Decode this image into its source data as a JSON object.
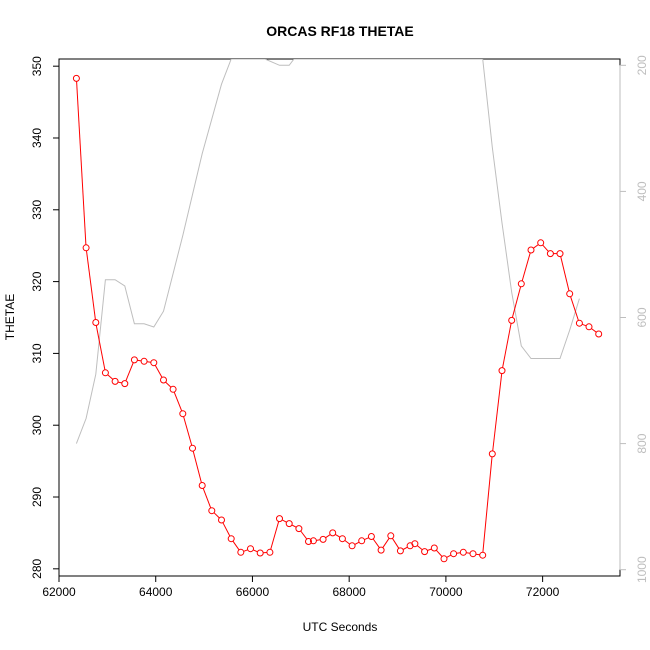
{
  "chart_data": {
    "type": "line",
    "title": "ORCAS RF18 THETAE",
    "xlabel": "UTC Seconds",
    "ylabel": "THETAE",
    "xlim": [
      62000,
      73600
    ],
    "ylim": [
      279,
      351
    ],
    "y2lim": [
      1010,
      190
    ],
    "y2_reversed": true,
    "x_ticks": [
      62000,
      64000,
      66000,
      68000,
      70000,
      72000
    ],
    "y_ticks": [
      280,
      290,
      300,
      310,
      320,
      330,
      340,
      350
    ],
    "y2_ticks": [
      200,
      400,
      600,
      800,
      1000
    ],
    "grid": false,
    "legend": "none",
    "colors": {
      "primary": "#ff0000",
      "secondary": "#bebebe"
    },
    "series": [
      {
        "axis": "left",
        "color": "#ff0000",
        "marker": "open-circle",
        "x": [
          62360,
          62560,
          62760,
          62960,
          63160,
          63360,
          63560,
          63760,
          63960,
          64160,
          64360,
          64560,
          64760,
          64960,
          65160,
          65360,
          65560,
          65760,
          65960,
          66160,
          66360,
          66560,
          66760,
          66960,
          67160,
          67260,
          67460,
          67660,
          67860,
          68060,
          68260,
          68460,
          68660,
          68860,
          69060,
          69260,
          69360,
          69560,
          69760,
          69960,
          70160,
          70360,
          70560,
          70760,
          70960,
          71160,
          71360,
          71560,
          71760,
          71960,
          72160,
          72360,
          72560,
          72760,
          72960,
          73160
        ],
        "values": [
          348.3,
          324.7,
          314.3,
          307.3,
          306.1,
          305.8,
          309.1,
          308.9,
          308.7,
          306.3,
          305.0,
          301.6,
          296.8,
          291.6,
          288.1,
          286.8,
          284.2,
          282.3,
          282.8,
          282.2,
          282.3,
          287.0,
          286.3,
          285.6,
          283.8,
          283.9,
          284.1,
          285.0,
          284.2,
          283.2,
          283.9,
          284.5,
          282.6,
          284.6,
          282.5,
          283.2,
          283.5,
          282.4,
          282.9,
          281.4,
          282.1,
          282.3,
          282.1,
          281.9,
          296.0,
          307.6,
          314.6,
          319.7,
          324.4,
          325.4,
          323.9,
          323.9,
          318.3,
          314.2,
          313.7,
          312.7
        ]
      },
      {
        "axis": "right",
        "color": "#bebebe",
        "marker": "none",
        "x": [
          62360,
          62560,
          62760,
          62960,
          63160,
          63360,
          63560,
          63760,
          63960,
          64160,
          64560,
          64960,
          65360,
          65560,
          66260,
          66560,
          66760,
          66860,
          68860,
          70360,
          70760,
          70960,
          71160,
          71360,
          71560,
          71760,
          71960,
          72160,
          72360,
          72560,
          72760
        ],
        "values": [
          800,
          760,
          690,
          540,
          540,
          550,
          610,
          610,
          615,
          590,
          470,
          340,
          230,
          190,
          190,
          200,
          200,
          190,
          190,
          190,
          190,
          330,
          450,
          560,
          645,
          665,
          665,
          665,
          665,
          620,
          570
        ]
      }
    ]
  }
}
